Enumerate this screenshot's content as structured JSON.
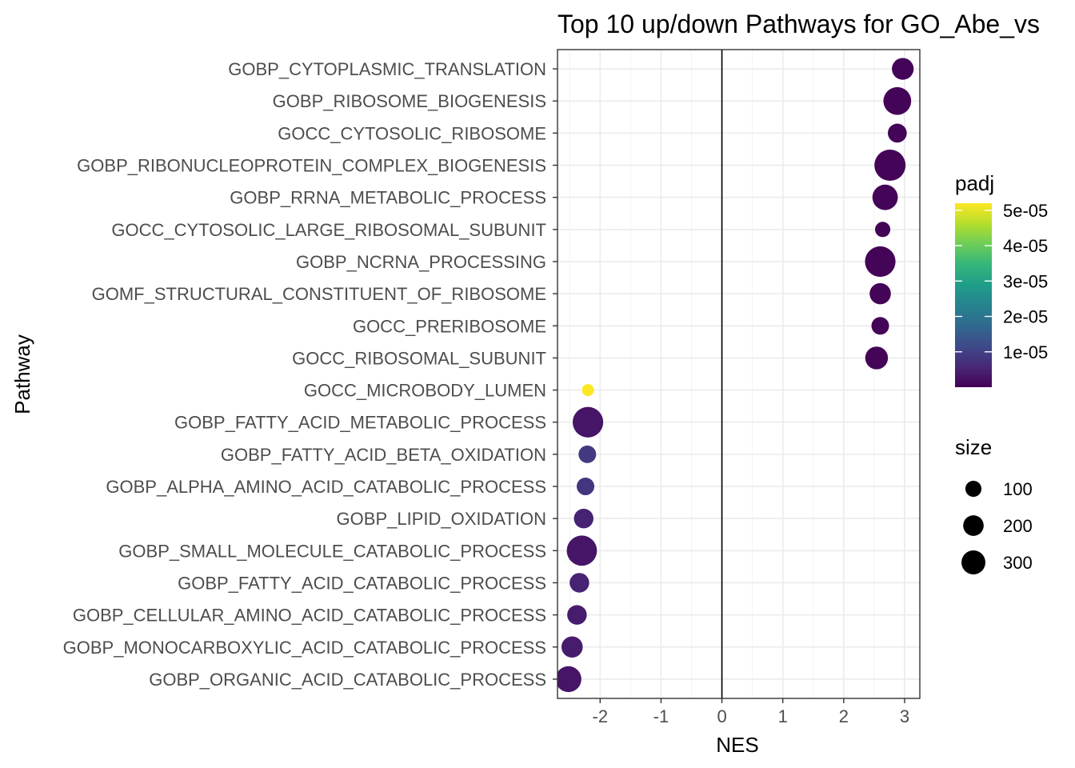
{
  "chart_data": {
    "type": "scatter",
    "title": "Top 10 up/down Pathways for  GO_Abe_vs",
    "xlabel": "NES",
    "ylabel": "Pathway",
    "xlim": [
      -2.7,
      3.25
    ],
    "x_ticks": [
      -2,
      -1,
      0,
      1,
      2,
      3
    ],
    "x_tick_labels": [
      "-2",
      "-1",
      "0",
      "1",
      "2",
      "3"
    ],
    "grid": true,
    "zero_line": true,
    "legend_position": "right",
    "color_scale": {
      "title": "padj",
      "palette": "viridis",
      "min": 0,
      "max": 5.2e-05,
      "breaks": [
        1e-05,
        2e-05,
        3e-05,
        4e-05,
        5e-05
      ],
      "break_labels": [
        "1e-05",
        "2e-05",
        "3e-05",
        "4e-05",
        "5e-05"
      ],
      "colors": [
        "#440154",
        "#482878",
        "#3e4989",
        "#31688e",
        "#26828e",
        "#1f9e89",
        "#35b779",
        "#6ece58",
        "#b5de2b",
        "#fde725"
      ]
    },
    "size_scale": {
      "title": "size",
      "breaks": [
        100,
        200,
        300
      ],
      "break_labels": [
        "100",
        "200",
        "300"
      ]
    },
    "points": [
      {
        "pathway": "GOBP_CYTOPLASMIC_TRANSLATION",
        "nes": 2.97,
        "padj": 5e-07,
        "size": 150
      },
      {
        "pathway": "GOBP_RIBOSOME_BIOGENESIS",
        "nes": 2.88,
        "padj": 5e-07,
        "size": 290
      },
      {
        "pathway": "GOCC_CYTOSOLIC_RIBOSOME",
        "nes": 2.88,
        "padj": 5e-07,
        "size": 100
      },
      {
        "pathway": "GOBP_RIBONUCLEOPROTEIN_COMPLEX_BIOGENESIS",
        "nes": 2.76,
        "padj": 5e-07,
        "size": 390
      },
      {
        "pathway": "GOBP_RRNA_METABOLIC_PROCESS",
        "nes": 2.68,
        "padj": 5e-07,
        "size": 230
      },
      {
        "pathway": "GOCC_CYTOSOLIC_LARGE_RIBOSOMAL_SUBUNIT",
        "nes": 2.64,
        "padj": 5e-07,
        "size": 50
      },
      {
        "pathway": "GOBP_NCRNA_PROCESSING",
        "nes": 2.6,
        "padj": 5e-07,
        "size": 370
      },
      {
        "pathway": "GOMF_STRUCTURAL_CONSTITUENT_OF_RIBOSOME",
        "nes": 2.6,
        "padj": 5e-07,
        "size": 140
      },
      {
        "pathway": "GOCC_PRERIBOSOME",
        "nes": 2.6,
        "padj": 5e-07,
        "size": 80
      },
      {
        "pathway": "GOCC_RIBOSOMAL_SUBUNIT",
        "nes": 2.54,
        "padj": 5e-07,
        "size": 170
      },
      {
        "pathway": "GOCC_MICROBODY_LUMEN",
        "nes": -2.2,
        "padj": 5.2e-05,
        "size": 20
      },
      {
        "pathway": "GOBP_FATTY_ACID_METABOLIC_PROCESS",
        "nes": -2.2,
        "padj": 3e-06,
        "size": 370
      },
      {
        "pathway": "GOBP_FATTY_ACID_BETA_OXIDATION",
        "nes": -2.21,
        "padj": 9e-06,
        "size": 80
      },
      {
        "pathway": "GOBP_ALPHA_AMINO_ACID_CATABOLIC_PROCESS",
        "nes": -2.24,
        "padj": 8e-06,
        "size": 80
      },
      {
        "pathway": "GOBP_LIPID_OXIDATION",
        "nes": -2.27,
        "padj": 5e-06,
        "size": 110
      },
      {
        "pathway": "GOBP_SMALL_MOLECULE_CATABOLIC_PROCESS",
        "nes": -2.3,
        "padj": 3e-06,
        "size": 360
      },
      {
        "pathway": "GOBP_FATTY_ACID_CATABOLIC_PROCESS",
        "nes": -2.34,
        "padj": 5e-06,
        "size": 110
      },
      {
        "pathway": "GOBP_CELLULAR_AMINO_ACID_CATABOLIC_PROCESS",
        "nes": -2.38,
        "padj": 4e-06,
        "size": 110
      },
      {
        "pathway": "GOBP_MONOCARBOXYLIC_ACID_CATABOLIC_PROCESS",
        "nes": -2.46,
        "padj": 4e-06,
        "size": 140
      },
      {
        "pathway": "GOBP_ORGANIC_ACID_CATABOLIC_PROCESS",
        "nes": -2.52,
        "padj": 3e-06,
        "size": 240
      }
    ]
  }
}
